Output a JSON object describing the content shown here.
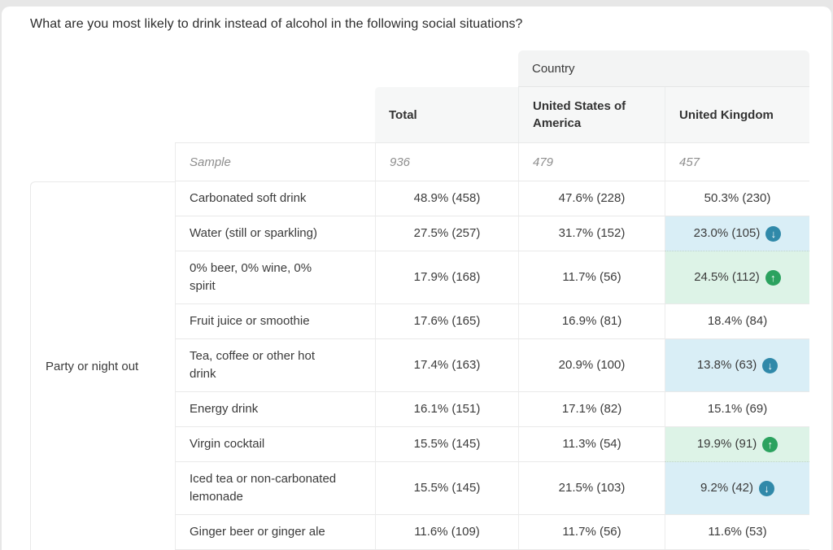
{
  "title": "What are you most likely to drink instead of alcohol in the following social situations?",
  "table": {
    "country_group_header": "Country",
    "columns": {
      "total": "Total",
      "usa": "United States of\nAmerica",
      "uk": "United Kingdom"
    },
    "sample": {
      "label": "Sample",
      "total": "936",
      "usa": "479",
      "uk": "457"
    },
    "group_label": "Party or night out",
    "rows": [
      {
        "label": "Carbonated soft drink",
        "total": "48.9% (458)",
        "usa": "47.6% (228)",
        "uk": "50.3% (230)",
        "uk_trend": null
      },
      {
        "label": "Water (still or sparkling)",
        "total": "27.5% (257)",
        "usa": "31.7% (152)",
        "uk": "23.0% (105)",
        "uk_trend": "down"
      },
      {
        "label": "0% beer, 0% wine, 0%\nspirit",
        "total": "17.9% (168)",
        "usa": "11.7% (56)",
        "uk": "24.5% (112)",
        "uk_trend": "up"
      },
      {
        "label": "Fruit juice or smoothie",
        "total": "17.6% (165)",
        "usa": "16.9% (81)",
        "uk": "18.4% (84)",
        "uk_trend": null
      },
      {
        "label": "Tea, coffee or other hot\ndrink",
        "total": "17.4% (163)",
        "usa": "20.9% (100)",
        "uk": "13.8% (63)",
        "uk_trend": "down"
      },
      {
        "label": "Energy drink",
        "total": "16.1% (151)",
        "usa": "17.1% (82)",
        "uk": "15.1% (69)",
        "uk_trend": null
      },
      {
        "label": "Virgin cocktail",
        "total": "15.5% (145)",
        "usa": "11.3% (54)",
        "uk": "19.9% (91)",
        "uk_trend": "up"
      },
      {
        "label": "Iced tea or non-carbonated\nlemonade",
        "total": "15.5% (145)",
        "usa": "21.5% (103)",
        "uk": "9.2% (42)",
        "uk_trend": "down"
      },
      {
        "label": "Ginger beer or ginger ale",
        "total": "11.6% (109)",
        "usa": "11.7% (56)",
        "uk": "11.6% (53)",
        "uk_trend": null
      }
    ]
  },
  "colors": {
    "highlight_down_bg": "#d9eef6",
    "highlight_up_bg": "#ddf3e7",
    "badge_down": "#3089a9",
    "badge_up": "#2ba25f",
    "header_bg": "#f5f6f6",
    "border": "#e9e9e9"
  },
  "icons": {
    "down": "↓",
    "up": "↑"
  },
  "chart_data": {
    "type": "table",
    "title": "What are you most likely to drink instead of alcohol in the following social situations?",
    "group": "Party or night out",
    "columns": [
      "Total",
      "United States of America",
      "United Kingdom"
    ],
    "sample_sizes": {
      "total": 936,
      "usa": 479,
      "uk": 457
    },
    "rows": [
      {
        "option": "Carbonated soft drink",
        "total_pct": 48.9,
        "total_n": 458,
        "usa_pct": 47.6,
        "usa_n": 228,
        "uk_pct": 50.3,
        "uk_n": 230,
        "uk_significance": null
      },
      {
        "option": "Water (still or sparkling)",
        "total_pct": 27.5,
        "total_n": 257,
        "usa_pct": 31.7,
        "usa_n": 152,
        "uk_pct": 23.0,
        "uk_n": 105,
        "uk_significance": "lower"
      },
      {
        "option": "0% beer, 0% wine, 0% spirit",
        "total_pct": 17.9,
        "total_n": 168,
        "usa_pct": 11.7,
        "usa_n": 56,
        "uk_pct": 24.5,
        "uk_n": 112,
        "uk_significance": "higher"
      },
      {
        "option": "Fruit juice or smoothie",
        "total_pct": 17.6,
        "total_n": 165,
        "usa_pct": 16.9,
        "usa_n": 81,
        "uk_pct": 18.4,
        "uk_n": 84,
        "uk_significance": null
      },
      {
        "option": "Tea, coffee or other hot drink",
        "total_pct": 17.4,
        "total_n": 163,
        "usa_pct": 20.9,
        "usa_n": 100,
        "uk_pct": 13.8,
        "uk_n": 63,
        "uk_significance": "lower"
      },
      {
        "option": "Energy drink",
        "total_pct": 16.1,
        "total_n": 151,
        "usa_pct": 17.1,
        "usa_n": 82,
        "uk_pct": 15.1,
        "uk_n": 69,
        "uk_significance": null
      },
      {
        "option": "Virgin cocktail",
        "total_pct": 15.5,
        "total_n": 145,
        "usa_pct": 11.3,
        "usa_n": 54,
        "uk_pct": 19.9,
        "uk_n": 91,
        "uk_significance": "higher"
      },
      {
        "option": "Iced tea or non-carbonated lemonade",
        "total_pct": 15.5,
        "total_n": 145,
        "usa_pct": 21.5,
        "usa_n": 103,
        "uk_pct": 9.2,
        "uk_n": 42,
        "uk_significance": "lower"
      },
      {
        "option": "Ginger beer or ginger ale",
        "total_pct": 11.6,
        "total_n": 109,
        "usa_pct": 11.7,
        "usa_n": 56,
        "uk_pct": 11.6,
        "uk_n": 53,
        "uk_significance": null
      }
    ]
  }
}
